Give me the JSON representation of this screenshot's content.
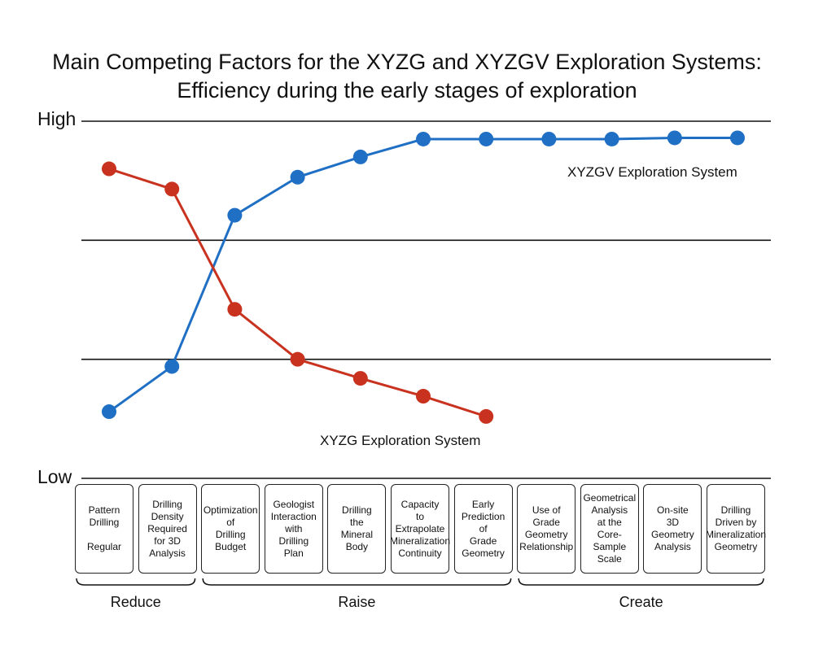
{
  "title_line1": "Main Competing Factors for the XYZG and XYZGV Exploration Systems:",
  "title_line2": "Efficiency during the early stages of exploration",
  "chart_data": {
    "type": "line",
    "ylim": [
      0,
      3
    ],
    "y_tick_labels": {
      "high": "High",
      "low": "Low"
    },
    "categories": [
      "Pattern\nDrilling\n\nRegular",
      "Drilling\nDensity\nRequired\nfor 3D\nAnalysis",
      "Optimization\nof\nDrilling\nBudget",
      "Geologist\nInteraction\nwith\nDrilling\nPlan",
      "Drilling\nthe\nMineral\nBody",
      "Capacity\nto\nExtrapolate\nMineralization\nContinuity",
      "Early\nPrediction\nof\nGrade\nGeometry",
      "Use of\nGrade\nGeometry\nRelationship",
      "Geometrical\nAnalysis\nat the\nCore-Sample\nScale",
      "On-site\n3D\nGeometry\nAnalysis",
      "Drilling\nDriven by\nMineralization\nGeometry"
    ],
    "series": [
      {
        "name": "XYZGV Exploration System",
        "color": "#1f6fc5",
        "values": [
          0.56,
          0.94,
          2.21,
          2.53,
          2.7,
          2.85,
          2.85,
          2.85,
          2.85,
          2.86,
          2.86
        ]
      },
      {
        "name": "XYZG Exploration System",
        "color": "#c8321e",
        "values": [
          2.6,
          2.43,
          1.42,
          1.0,
          0.84,
          0.69,
          0.52,
          null,
          null,
          null,
          null
        ]
      }
    ],
    "groups": [
      {
        "label": "Reduce",
        "from": 0,
        "to": 1
      },
      {
        "label": "Raise",
        "from": 2,
        "to": 6
      },
      {
        "label": "Create",
        "from": 7,
        "to": 10
      }
    ]
  }
}
